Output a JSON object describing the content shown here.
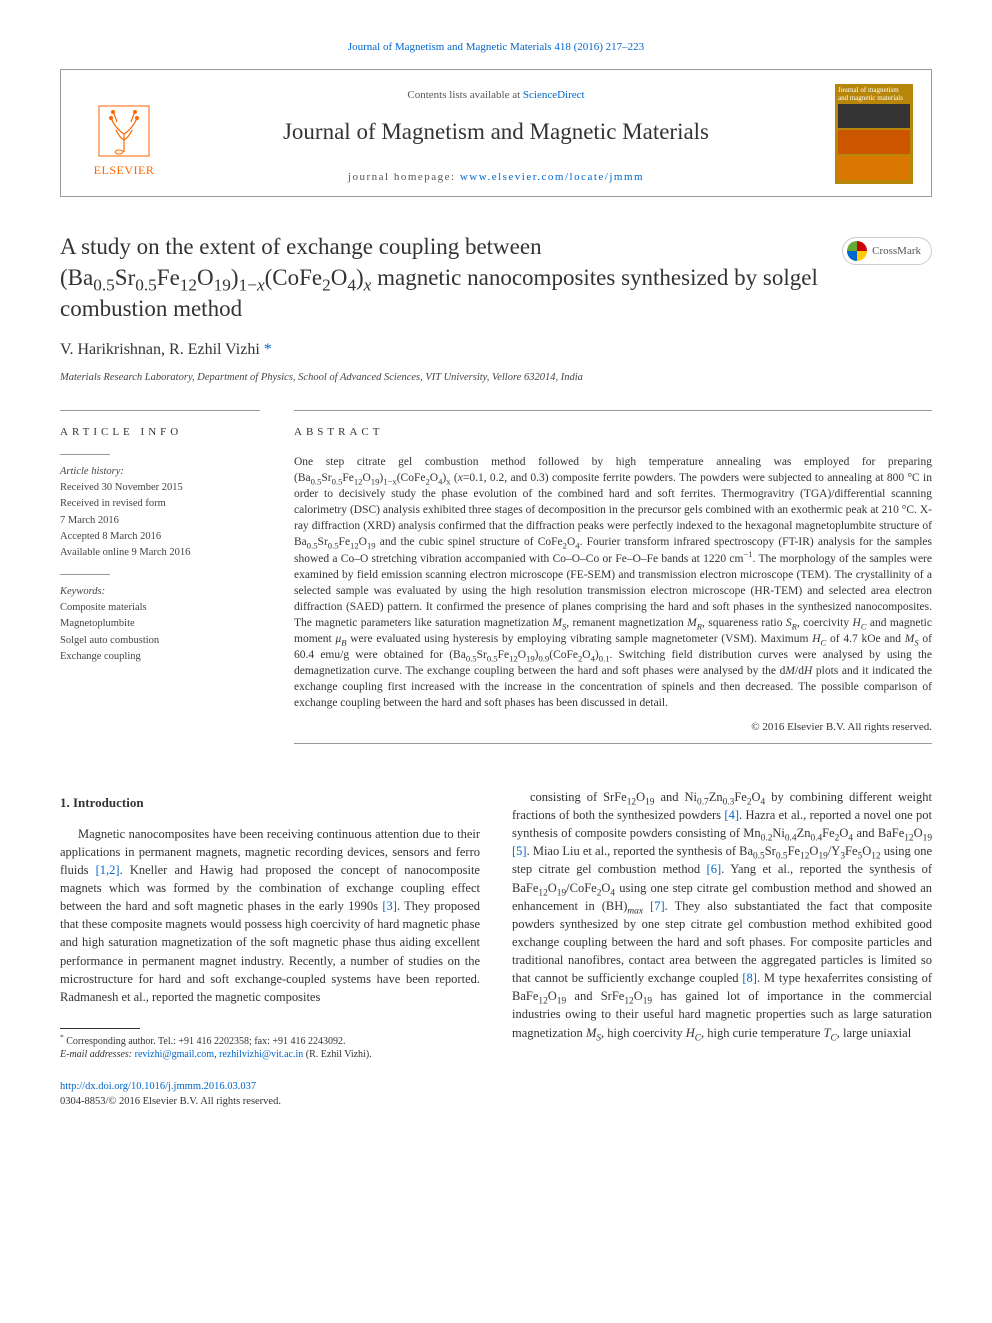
{
  "top_citation": "Journal of Magnetism and Magnetic Materials 418 (2016) 217–223",
  "header": {
    "contents_line_prefix": "Contents lists available at ",
    "contents_link": "ScienceDirect",
    "journal_name": "Journal of Magnetism and Magnetic Materials",
    "homepage_prefix": "journal homepage: ",
    "homepage_url": "www.elsevier.com/locate/jmmm",
    "publisher_logo_text": "ELSEVIER",
    "cover_top_text": "Journal of magnetism and magnetic materials"
  },
  "crossmark_label": "CrossMark",
  "article_title_html": "A study on the extent of exchange coupling between (Ba<sub>0.5</sub>Sr<sub>0.5</sub>Fe<sub>12</sub>O<sub>19</sub>)<sub>1−<i>x</i></sub>(CoFe<sub>2</sub>O<sub>4</sub>)<sub><i>x</i></sub> magnetic nanocomposites synthesized by solgel combustion method",
  "authors_html": "V. Harikrishnan, R. Ezhil Vizhi <span class=\"marker\">*</span>",
  "affiliation": "Materials Research Laboratory, Department of Physics, School of Advanced Sciences, VIT University, Vellore 632014, India",
  "article_info": {
    "heading": "ARTICLE INFO",
    "history_head": "Article history:",
    "history": [
      "Received 30 November 2015",
      "Received in revised form",
      "7 March 2016",
      "Accepted 8 March 2016",
      "Available online 9 March 2016"
    ],
    "keywords_head": "Keywords:",
    "keywords": [
      "Composite materials",
      "Magnetoplumbite",
      "Solgel auto combustion",
      "Exchange coupling"
    ]
  },
  "abstract": {
    "heading": "ABSTRACT",
    "text_html": "One step citrate gel combustion method followed by high temperature annealing was employed for preparing (Ba<sub>0.5</sub>Sr<sub>0.5</sub>Fe<sub>12</sub>O<sub>19</sub>)<sub>1−x</sub>(CoFe<sub>2</sub>O<sub>4</sub>)<sub>x</sub> (<i>x</i>=0.1, 0.2, and 0.3) composite ferrite powders. The powders were subjected to annealing at 800 °C in order to decisively study the phase evolution of the combined hard and soft ferrites. Thermogravitry (TGA)/differential scanning calorimetry (DSC) analysis exhibited three stages of decomposition in the precursor gels combined with an exothermic peak at 210 °C. X-ray diffraction (XRD) analysis confirmed that the diffraction peaks were perfectly indexed to the hexagonal magnetoplumbite structure of Ba<sub>0.5</sub>Sr<sub>0.5</sub>Fe<sub>12</sub>O<sub>19</sub> and the cubic spinel structure of CoFe<sub>2</sub>O<sub>4</sub>. Fourier transform infrared spectroscopy (FT-IR) analysis for the samples showed a Co–O stretching vibration accompanied with Co–O–Co or Fe–O–Fe bands at 1220 cm<sup>−1</sup>. The morphology of the samples were examined by field emission scanning electron microscope (FE-SEM) and transmission electron microscope (TEM). The crystallinity of a selected sample was evaluated by using the high resolution transmission electron microscope (HR-TEM) and selected area electron diffraction (SAED) pattern. It confirmed the presence of planes comprising the hard and soft phases in the synthesized nanocomposites. The magnetic parameters like saturation magnetization <i>M<sub>S</sub></i>, remanent magnetization <i>M<sub>R</sub></i>, squareness ratio <i>S<sub>R</sub></i>, coercivity <i>H<sub>C</sub></i> and magnetic moment <i>μ<sub>B</sub></i> were evaluated using hysteresis by employing vibrating sample magnetometer (VSM). Maximum <i>H<sub>C</sub></i> of 4.7 kOe and <i>M<sub>S</sub></i> of 60.4 emu/g were obtained for (Ba<sub>0.5</sub>Sr<sub>0.5</sub>Fe<sub>12</sub>O<sub>19</sub>)<sub>0.9</sub>(CoFe<sub>2</sub>O<sub>4</sub>)<sub>0.1</sub>. Switching field distribution curves were analysed by using the demagnetization curve. The exchange coupling between the hard and soft phases were analysed by the d<i>M</i>/d<i>H</i> plots and it indicated the exchange coupling first increased with the increase in the concentration of spinels and then decreased. The possible comparison of exchange coupling between the hard and soft phases has been discussed in detail.",
    "copyright": "© 2016 Elsevier B.V. All rights reserved."
  },
  "body": {
    "section_heading": "1. Introduction",
    "col1_html": "Magnetic nanocomposites have been receiving continuous attention due to their applications in permanent magnets, magnetic recording devices, sensors and ferro fluids <a class=\"ref\">[1,2]</a>. Kneller and Hawig had proposed the concept of nanocomposite magnets which was formed by the combination of exchange coupling effect between the hard and soft magnetic phases in the early 1990s <a class=\"ref\">[3]</a>. They proposed that these composite magnets would possess high coercivity of hard magnetic phase and high saturation magnetization of the soft magnetic phase thus aiding excellent performance in permanent magnet industry. Recently, a number of studies on the microstructure for hard and soft exchange-coupled systems have been reported. Radmanesh et al., reported the magnetic composites",
    "col2_html": "consisting of SrFe<sub>12</sub>O<sub>19</sub> and Ni<sub>0.7</sub>Zn<sub>0.3</sub>Fe<sub>2</sub>O<sub>4</sub> by combining different weight fractions of both the synthesized powders <a class=\"ref\">[4]</a>. Hazra et al., reported a novel one pot synthesis of composite powders consisting of Mn<sub>0.2</sub>Ni<sub>0.4</sub>Zn<sub>0.4</sub>Fe<sub>2</sub>O<sub>4</sub> and BaFe<sub>12</sub>O<sub>19</sub> <a class=\"ref\">[5]</a>. Miao Liu et al., reported the synthesis of Ba<sub>0.5</sub>Sr<sub>0.5</sub>Fe<sub>12</sub>O<sub>19</sub>/Y<sub>3</sub>Fe<sub>5</sub>O<sub>12</sub> using one step citrate gel combustion method <a class=\"ref\">[6]</a>. Yang et al., reported the synthesis of BaFe<sub>12</sub>O<sub>19</sub>/CoFe<sub>2</sub>O<sub>4</sub> using one step citrate gel combustion method and showed an enhancement in (BH)<sub><i>max</i></sub> <a class=\"ref\">[7]</a>. They also substantiated the fact that composite powders synthesized by one step citrate gel combustion method exhibited good exchange coupling between the hard and soft phases. For composite particles and traditional nanofibres, contact area between the aggregated particles is limited so that cannot be sufficiently exchange coupled <a class=\"ref\">[8]</a>. M type hexaferrites consisting of BaFe<sub>12</sub>O<sub>19</sub> and SrFe<sub>12</sub>O<sub>19</sub> has gained lot of importance in the commercial industries owing to their useful hard magnetic properties such as large saturation magnetization <i>M<sub>S</sub></i>, high coercivity <i>H<sub>C</sub></i>, high curie temperature <i>T<sub>C</sub></i>, large uniaxial"
  },
  "footnote": {
    "corresponding_html": "<sup>*</sup> Corresponding author. Tel.: +91 416 2202358; fax: +91 416 2243092.",
    "email_prefix": "E-mail addresses: ",
    "email1": "revizhi@gmail.com",
    "email_sep": ", ",
    "email2": "rezhilvizhi@vit.ac.in",
    "email_suffix": " (R. Ezhil Vizhi)."
  },
  "footer": {
    "doi": "http://dx.doi.org/10.1016/j.jmmm.2016.03.037",
    "issn_copy": "0304-8853/© 2016 Elsevier B.V. All rights reserved."
  },
  "colors": {
    "link": "#0066cc",
    "publisher": "#ff6600",
    "text": "#333333",
    "border": "#999999",
    "cover_bg": "#b8860b"
  }
}
